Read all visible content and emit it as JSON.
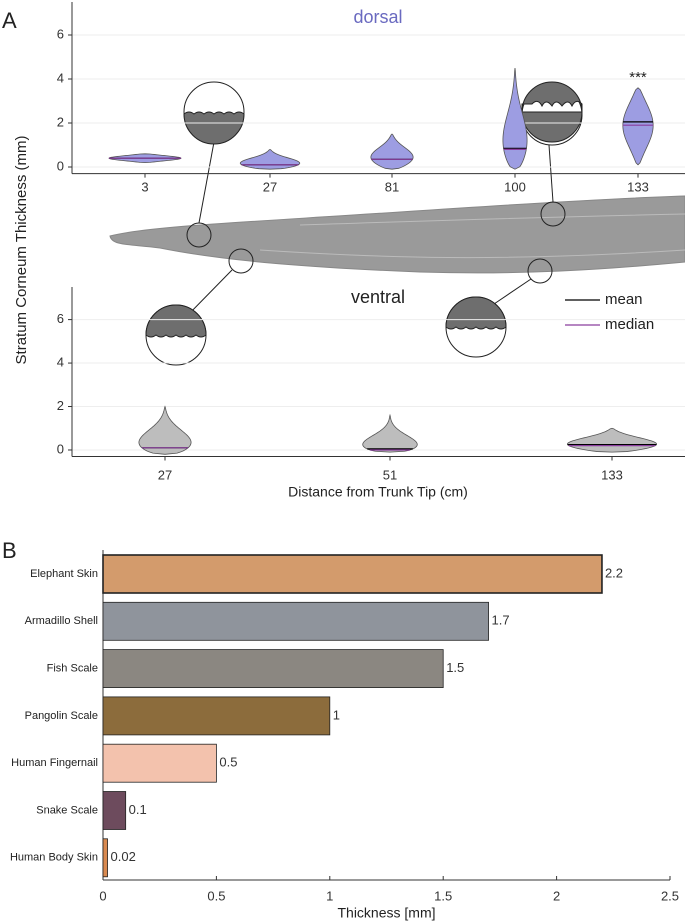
{
  "chart_data": [
    {
      "type": "violin",
      "panel": "A",
      "title": "dorsal",
      "y_label": "Stratum Corneum Thickness (mm)",
      "categories": [
        "3",
        "27",
        "81",
        "100",
        "133"
      ],
      "series": [
        {
          "color": "#9d9de2",
          "min": [
            0.2,
            -0.1,
            -0.1,
            -0.1,
            0.1
          ],
          "max": [
            0.6,
            0.8,
            1.5,
            4.5,
            3.6
          ],
          "median": [
            0.4,
            0.1,
            0.35,
            0.8,
            1.9
          ],
          "mean": [
            0.4,
            0.1,
            0.35,
            0.85,
            2.05
          ]
        }
      ],
      "annotations": [
        {
          "category": 4,
          "text": "***"
        }
      ],
      "ylim": [
        -0.3,
        7.5
      ],
      "yticks": [
        0,
        2,
        4,
        6
      ],
      "grid": true
    },
    {
      "type": "violin",
      "title": "ventral",
      "x_label": "Distance from Trunk Tip (cm)",
      "categories": [
        "27",
        "51",
        "133"
      ],
      "series": [
        {
          "color": "#bdbdbd",
          "min": [
            -0.2,
            -0.1,
            -0.1
          ],
          "max": [
            2,
            1.6,
            1
          ],
          "median": [
            0.1,
            0,
            0.2
          ],
          "mean": [
            0.1,
            0.05,
            0.25
          ]
        }
      ],
      "legend": [
        {
          "name": "mean",
          "color": "#000000"
        },
        {
          "name": "median",
          "color": "#8a3d9e"
        }
      ],
      "legend_position": "upper right",
      "ylim": [
        -0.3,
        7.5
      ],
      "yticks": [
        0,
        2,
        4,
        6
      ],
      "grid": true
    },
    {
      "type": "hbar",
      "panel": "B",
      "x_label": "Thickness [mm]",
      "categories": [
        "Elephant Skin",
        "Armadillo Shell",
        "Fish Scale",
        "Pangolin Scale",
        "Human Fingernail",
        "Snake Scale",
        "Human Body Skin"
      ],
      "values": [
        2.2,
        1.7,
        1.5,
        1,
        0.5,
        0.1,
        0.02
      ],
      "colors": [
        "#d39b6c",
        "#8f949c",
        "#8b8781",
        "#8c6c3c",
        "#f3c2ad",
        "#6d4b5d",
        "#d98a50"
      ],
      "xlim": [
        0,
        2.5
      ],
      "xticks": [
        0,
        0.5,
        1,
        1.5,
        2,
        2.5
      ]
    }
  ]
}
